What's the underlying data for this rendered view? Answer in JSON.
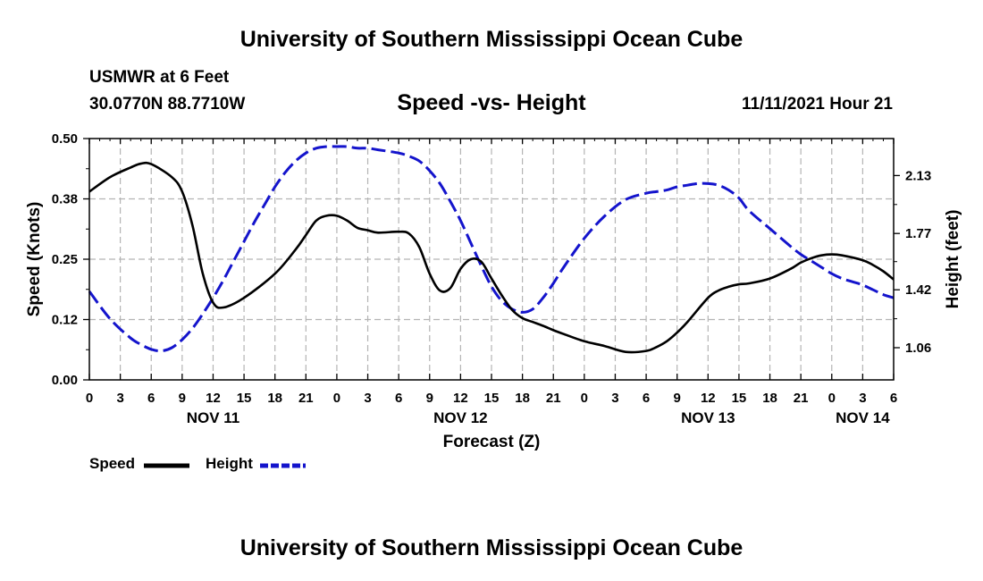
{
  "page": {
    "title_top": "University of Southern Mississippi Ocean Cube",
    "title_bottom": "University of Southern Mississippi Ocean Cube",
    "station": "USMWR at 6 Feet",
    "coordinates": "30.0770N  88.7710W",
    "timestamp": "11/11/2021 Hour 21"
  },
  "chart_data": {
    "type": "line",
    "title": "Speed -vs- Height",
    "xlabel": "Forecast (Z)",
    "ylabel": "Speed (Knots)",
    "y2label": "Height (feet)",
    "x_unit": "hours since 11/11 00Z",
    "xlim": [
      0,
      78
    ],
    "ylim": [
      0,
      0.5
    ],
    "y2lim": [
      0.86,
      2.36
    ],
    "grid": true,
    "x_ticks": [
      0,
      3,
      6,
      9,
      12,
      15,
      18,
      21,
      24,
      27,
      30,
      33,
      36,
      39,
      42,
      45,
      48,
      51,
      54,
      57,
      60,
      63,
      66,
      69,
      72,
      75,
      78
    ],
    "x_tick_labels": [
      "0",
      "3",
      "6",
      "9",
      "12",
      "15",
      "18",
      "21",
      "0",
      "3",
      "6",
      "9",
      "12",
      "15",
      "18",
      "21",
      "0",
      "3",
      "6",
      "9",
      "12",
      "15",
      "18",
      "21",
      "0",
      "3",
      "6"
    ],
    "y_ticks": [
      0.0,
      0.125,
      0.25,
      0.375,
      0.5
    ],
    "y_tick_labels": [
      "0.00",
      "0.12",
      "0.25",
      "0.38",
      "0.50"
    ],
    "y2_ticks": [
      1.06,
      1.42,
      1.77,
      2.13
    ],
    "y2_tick_labels": [
      "1.06",
      "1.42",
      "1.77",
      "2.13"
    ],
    "day_labels": [
      {
        "x": 12,
        "label": "NOV 11"
      },
      {
        "x": 36,
        "label": "NOV 12"
      },
      {
        "x": 60,
        "label": "NOV 13"
      },
      {
        "x": 75,
        "label": "NOV 14"
      }
    ],
    "series": [
      {
        "name": "Speed",
        "axis": "left",
        "color": "#000000",
        "dashed": false,
        "x": [
          0,
          2,
          4,
          5,
          6,
          8,
          9,
          10,
          11,
          12,
          13,
          15,
          18,
          20,
          21,
          22,
          23,
          24,
          25,
          26,
          27,
          28,
          30,
          31,
          32,
          33,
          34,
          35,
          36,
          37,
          38,
          39,
          40,
          41,
          42,
          43,
          44,
          45,
          46,
          48,
          50,
          52,
          54,
          55,
          56,
          57,
          58,
          60,
          61,
          62,
          63,
          64,
          66,
          68,
          69,
          70,
          71,
          72,
          73,
          75,
          76,
          77,
          78
        ],
        "values": [
          0.39,
          0.42,
          0.44,
          0.448,
          0.447,
          0.42,
          0.39,
          0.32,
          0.22,
          0.16,
          0.15,
          0.17,
          0.22,
          0.27,
          0.3,
          0.33,
          0.34,
          0.34,
          0.33,
          0.315,
          0.31,
          0.305,
          0.307,
          0.303,
          0.275,
          0.22,
          0.185,
          0.19,
          0.23,
          0.25,
          0.245,
          0.21,
          0.175,
          0.145,
          0.128,
          0.12,
          0.112,
          0.103,
          0.095,
          0.08,
          0.07,
          0.058,
          0.06,
          0.068,
          0.08,
          0.098,
          0.12,
          0.17,
          0.185,
          0.193,
          0.198,
          0.2,
          0.21,
          0.23,
          0.243,
          0.252,
          0.258,
          0.26,
          0.258,
          0.248,
          0.238,
          0.225,
          0.208
        ]
      },
      {
        "name": "Height",
        "axis": "right",
        "color": "#1414cc",
        "dashed": true,
        "x": [
          0,
          2,
          4,
          5,
          6,
          7,
          8,
          9,
          10,
          11,
          12,
          13,
          14,
          15,
          16,
          17,
          18,
          19,
          20,
          21,
          22,
          23,
          24,
          25,
          26,
          27,
          28,
          30,
          31,
          32,
          33,
          34,
          35,
          36,
          37,
          38,
          39,
          40,
          41,
          42,
          43,
          44,
          45,
          46,
          48,
          50,
          52,
          54,
          55,
          56,
          57,
          58,
          59,
          60,
          61,
          62,
          63,
          64,
          66,
          68,
          69,
          70,
          71,
          72,
          73,
          74,
          75,
          76,
          77,
          78
        ],
        "values": [
          1.41,
          1.24,
          1.12,
          1.08,
          1.05,
          1.04,
          1.06,
          1.11,
          1.18,
          1.27,
          1.37,
          1.48,
          1.6,
          1.72,
          1.84,
          1.95,
          2.06,
          2.15,
          2.22,
          2.27,
          2.3,
          2.31,
          2.31,
          2.31,
          2.3,
          2.3,
          2.29,
          2.27,
          2.25,
          2.22,
          2.16,
          2.08,
          1.97,
          1.85,
          1.71,
          1.57,
          1.44,
          1.35,
          1.3,
          1.28,
          1.3,
          1.37,
          1.46,
          1.56,
          1.74,
          1.88,
          1.98,
          2.02,
          2.03,
          2.04,
          2.06,
          2.07,
          2.08,
          2.08,
          2.07,
          2.04,
          1.99,
          1.91,
          1.8,
          1.69,
          1.64,
          1.6,
          1.56,
          1.52,
          1.49,
          1.47,
          1.45,
          1.42,
          1.39,
          1.37
        ]
      }
    ],
    "legend": [
      {
        "label": "Speed",
        "color": "#000000",
        "dashed": false
      },
      {
        "label": "Height",
        "color": "#1414cc",
        "dashed": true
      }
    ]
  }
}
